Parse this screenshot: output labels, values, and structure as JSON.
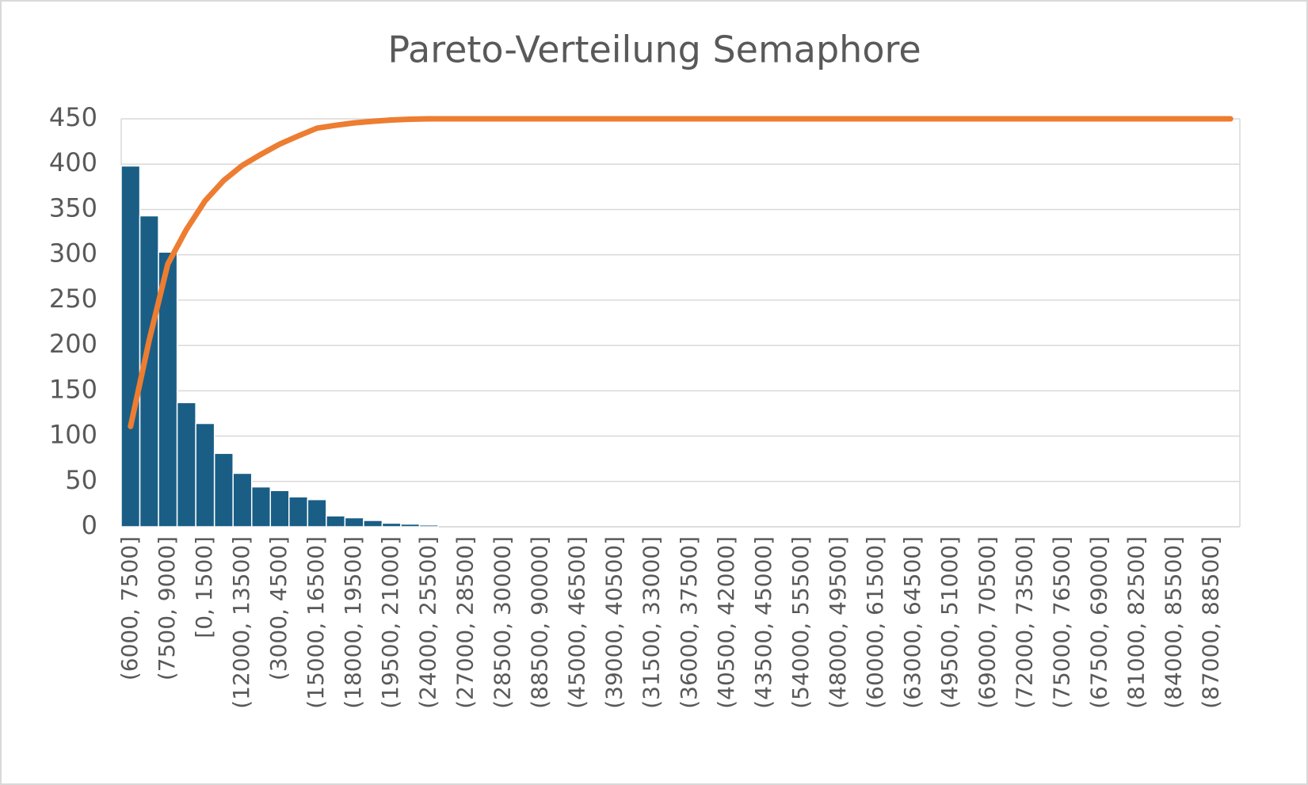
{
  "chart_data": {
    "type": "pareto",
    "title": "Pareto-Verteilung Semaphore",
    "categories": [
      "(6000, 7500]",
      null,
      "(7500, 9000]",
      null,
      "[0, 1500]",
      null,
      "(12000, 13500]",
      null,
      "(3000, 4500]",
      null,
      "(15000, 16500]",
      null,
      "(18000, 19500]",
      null,
      "(19500, 21000]",
      null,
      "(24000, 25500]",
      null,
      "(27000, 28500]",
      null,
      "(28500, 30000]",
      null,
      "(88500, 90000]",
      null,
      "(45000, 46500]",
      null,
      "(39000, 40500]",
      null,
      "(31500, 33000]",
      null,
      "(36000, 37500]",
      null,
      "(40500, 42000]",
      null,
      "(43500, 45000]",
      null,
      "(54000, 55500]",
      null,
      "(48000, 49500]",
      null,
      "(60000, 61500]",
      null,
      "(63000, 64500]",
      null,
      "(49500, 51000]",
      null,
      "(69000, 70500]",
      null,
      "(72000, 73500]",
      null,
      "(75000, 76500]",
      null,
      "(67500, 69000]",
      null,
      "(81000, 82500]",
      null,
      "(84000, 85500]",
      null,
      "(87000, 88500]",
      null
    ],
    "series": [
      {
        "color": "#1a5e86",
        "values": [
          398,
          343,
          303,
          137,
          114,
          81,
          59,
          44,
          40,
          33,
          30,
          12,
          10,
          7,
          4,
          3,
          2,
          0,
          0,
          0,
          0,
          0,
          0,
          0,
          0,
          0,
          0,
          0,
          0,
          0,
          0,
          0,
          0,
          0,
          0,
          0,
          0,
          0,
          0,
          0,
          0,
          0,
          0,
          0,
          0,
          0,
          0,
          0,
          0,
          0,
          0,
          0,
          0,
          0,
          0,
          0,
          0,
          0,
          0,
          0
        ]
      },
      {
        "color": "#ed7d31",
        "axis": "y2",
        "values": [
          24.6,
          45.7,
          64.4,
          72.9,
          79.9,
          84.9,
          88.6,
          91.3,
          93.8,
          95.8,
          97.7,
          98.4,
          99.0,
          99.4,
          99.7,
          99.9,
          100,
          100,
          100,
          100,
          100,
          100,
          100,
          100,
          100,
          100,
          100,
          100,
          100,
          100,
          100,
          100,
          100,
          100,
          100,
          100,
          100,
          100,
          100,
          100,
          100,
          100,
          100,
          100,
          100,
          100,
          100,
          100,
          100,
          100,
          100,
          100,
          100,
          100,
          100,
          100,
          100,
          100,
          100,
          100
        ]
      }
    ],
    "ylim": [
      0,
      450
    ],
    "yticks": [
      0,
      50,
      100,
      150,
      200,
      250,
      300,
      350,
      400,
      450
    ],
    "y2lim": [
      0,
      100
    ],
    "grid": true
  }
}
